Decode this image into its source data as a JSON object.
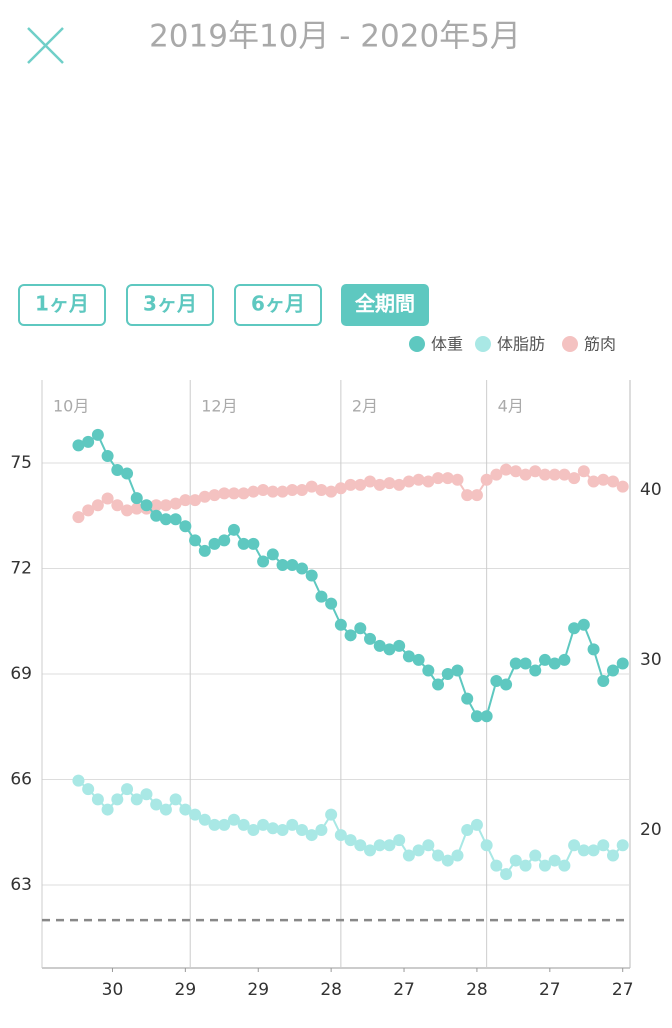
{
  "header": {
    "title": "2019年10月 - 2020年5月"
  },
  "range_buttons": [
    "1ヶ月",
    "3ヶ月",
    "6ヶ月",
    "全期間"
  ],
  "chart_data": {
    "type": "line",
    "x": [
      "2019-10-16",
      "2019-10-20",
      "2019-10-24",
      "2019-10-28",
      "2019-11-01",
      "2019-11-05",
      "2019-11-09",
      "2019-11-13",
      "2019-11-17",
      "2019-11-21",
      "2019-11-25",
      "2019-11-29",
      "2019-12-03",
      "2019-12-07",
      "2019-12-11",
      "2019-12-15",
      "2019-12-19",
      "2019-12-23",
      "2019-12-27",
      "2019-12-31",
      "2020-01-04",
      "2020-01-08",
      "2020-01-12",
      "2020-01-16",
      "2020-01-20",
      "2020-01-24",
      "2020-01-28",
      "2020-02-01",
      "2020-02-05",
      "2020-02-09",
      "2020-02-13",
      "2020-02-17",
      "2020-02-21",
      "2020-02-25",
      "2020-02-29",
      "2020-03-04",
      "2020-03-08",
      "2020-03-12",
      "2020-03-16",
      "2020-03-20",
      "2020-03-24",
      "2020-03-28",
      "2020-04-01",
      "2020-04-05",
      "2020-04-09",
      "2020-04-13",
      "2020-04-17",
      "2020-04-21",
      "2020-04-25",
      "2020-04-29",
      "2020-05-03",
      "2020-05-07",
      "2020-05-11",
      "2020-05-15",
      "2020-05-19",
      "2020-05-23",
      "2020-05-27"
    ],
    "series": [
      {
        "name": "体重",
        "color": "#5ec8c0",
        "values": [
          75.5,
          75.6,
          75.8,
          75.2,
          74.8,
          74.7,
          74.0,
          73.8,
          73.5,
          73.4,
          73.4,
          73.2,
          72.8,
          72.5,
          72.7,
          72.8,
          73.1,
          72.7,
          72.7,
          72.2,
          72.4,
          72.1,
          72.1,
          72.0,
          71.8,
          71.2,
          71.0,
          70.4,
          70.1,
          70.3,
          70.0,
          69.8,
          69.7,
          69.8,
          69.5,
          69.4,
          69.1,
          68.7,
          69.0,
          69.1,
          68.3,
          67.8,
          67.8,
          68.8,
          68.7,
          69.3,
          69.3,
          69.1,
          69.4,
          69.3,
          69.4,
          70.3,
          70.4,
          69.7,
          68.8,
          69.1,
          69.3
        ]
      },
      {
        "name": "体脂肪",
        "color": "#a9e8e5",
        "axis": "y2",
        "values": [
          22.9,
          22.4,
          21.8,
          21.2,
          21.8,
          22.4,
          21.8,
          22.1,
          21.5,
          21.2,
          21.8,
          21.2,
          20.9,
          20.6,
          20.3,
          20.3,
          20.6,
          20.3,
          20.0,
          20.3,
          20.1,
          20.0,
          20.3,
          20.0,
          19.7,
          20.0,
          20.9,
          19.7,
          19.4,
          19.1,
          18.8,
          19.1,
          19.1,
          19.4,
          18.5,
          18.8,
          19.1,
          18.5,
          18.2,
          18.5,
          20.0,
          20.3,
          19.1,
          17.9,
          17.4,
          18.2,
          17.9,
          18.5,
          17.9,
          18.2,
          17.9,
          19.1,
          18.8,
          18.8,
          19.1,
          18.5,
          19.1
        ]
      },
      {
        "name": "筋肉",
        "color": "#f4c2c1",
        "axis": "y2",
        "values": [
          38.4,
          38.8,
          39.1,
          39.5,
          39.1,
          38.8,
          38.9,
          38.9,
          39.1,
          39.1,
          39.2,
          39.4,
          39.4,
          39.6,
          39.7,
          39.8,
          39.8,
          39.8,
          39.9,
          40.0,
          39.9,
          39.9,
          40.0,
          40.0,
          40.2,
          40.0,
          39.9,
          40.1,
          40.3,
          40.3,
          40.5,
          40.3,
          40.4,
          40.3,
          40.5,
          40.6,
          40.5,
          40.7,
          40.7,
          40.6,
          39.7,
          39.7,
          40.6,
          40.9,
          41.2,
          41.1,
          40.9,
          41.1,
          40.9,
          40.9,
          40.9,
          40.7,
          41.1,
          40.5,
          40.6,
          40.5,
          40.2
        ]
      }
    ],
    "xlim": [
      "2019-10-01",
      "2020-05-30"
    ],
    "xticks": [
      {
        "value": "2019-10-30",
        "label": "30"
      },
      {
        "value": "2019-11-29",
        "label": "29"
      },
      {
        "value": "2019-12-29",
        "label": "29"
      },
      {
        "value": "2020-01-28",
        "label": "28"
      },
      {
        "value": "2020-02-27",
        "label": "27"
      },
      {
        "value": "2020-03-28",
        "label": "28"
      },
      {
        "value": "2020-04-27",
        "label": "27"
      },
      {
        "value": "2020-05-27",
        "label": "27"
      }
    ],
    "month_ticks": [
      {
        "value": "2019-10-01",
        "label": "10月"
      },
      {
        "value": "2019-12-01",
        "label": "12月"
      },
      {
        "value": "2020-02-01",
        "label": "2月"
      },
      {
        "value": "2020-04-01",
        "label": "4月"
      }
    ],
    "ylim": [
      60.64,
      77.36
    ],
    "yticks": [
      63,
      66,
      69,
      72,
      75
    ],
    "y2lim": [
      11.88,
      46.47
    ],
    "y2ticks": [
      20,
      30,
      40
    ],
    "target_line": 62,
    "grid": true
  }
}
